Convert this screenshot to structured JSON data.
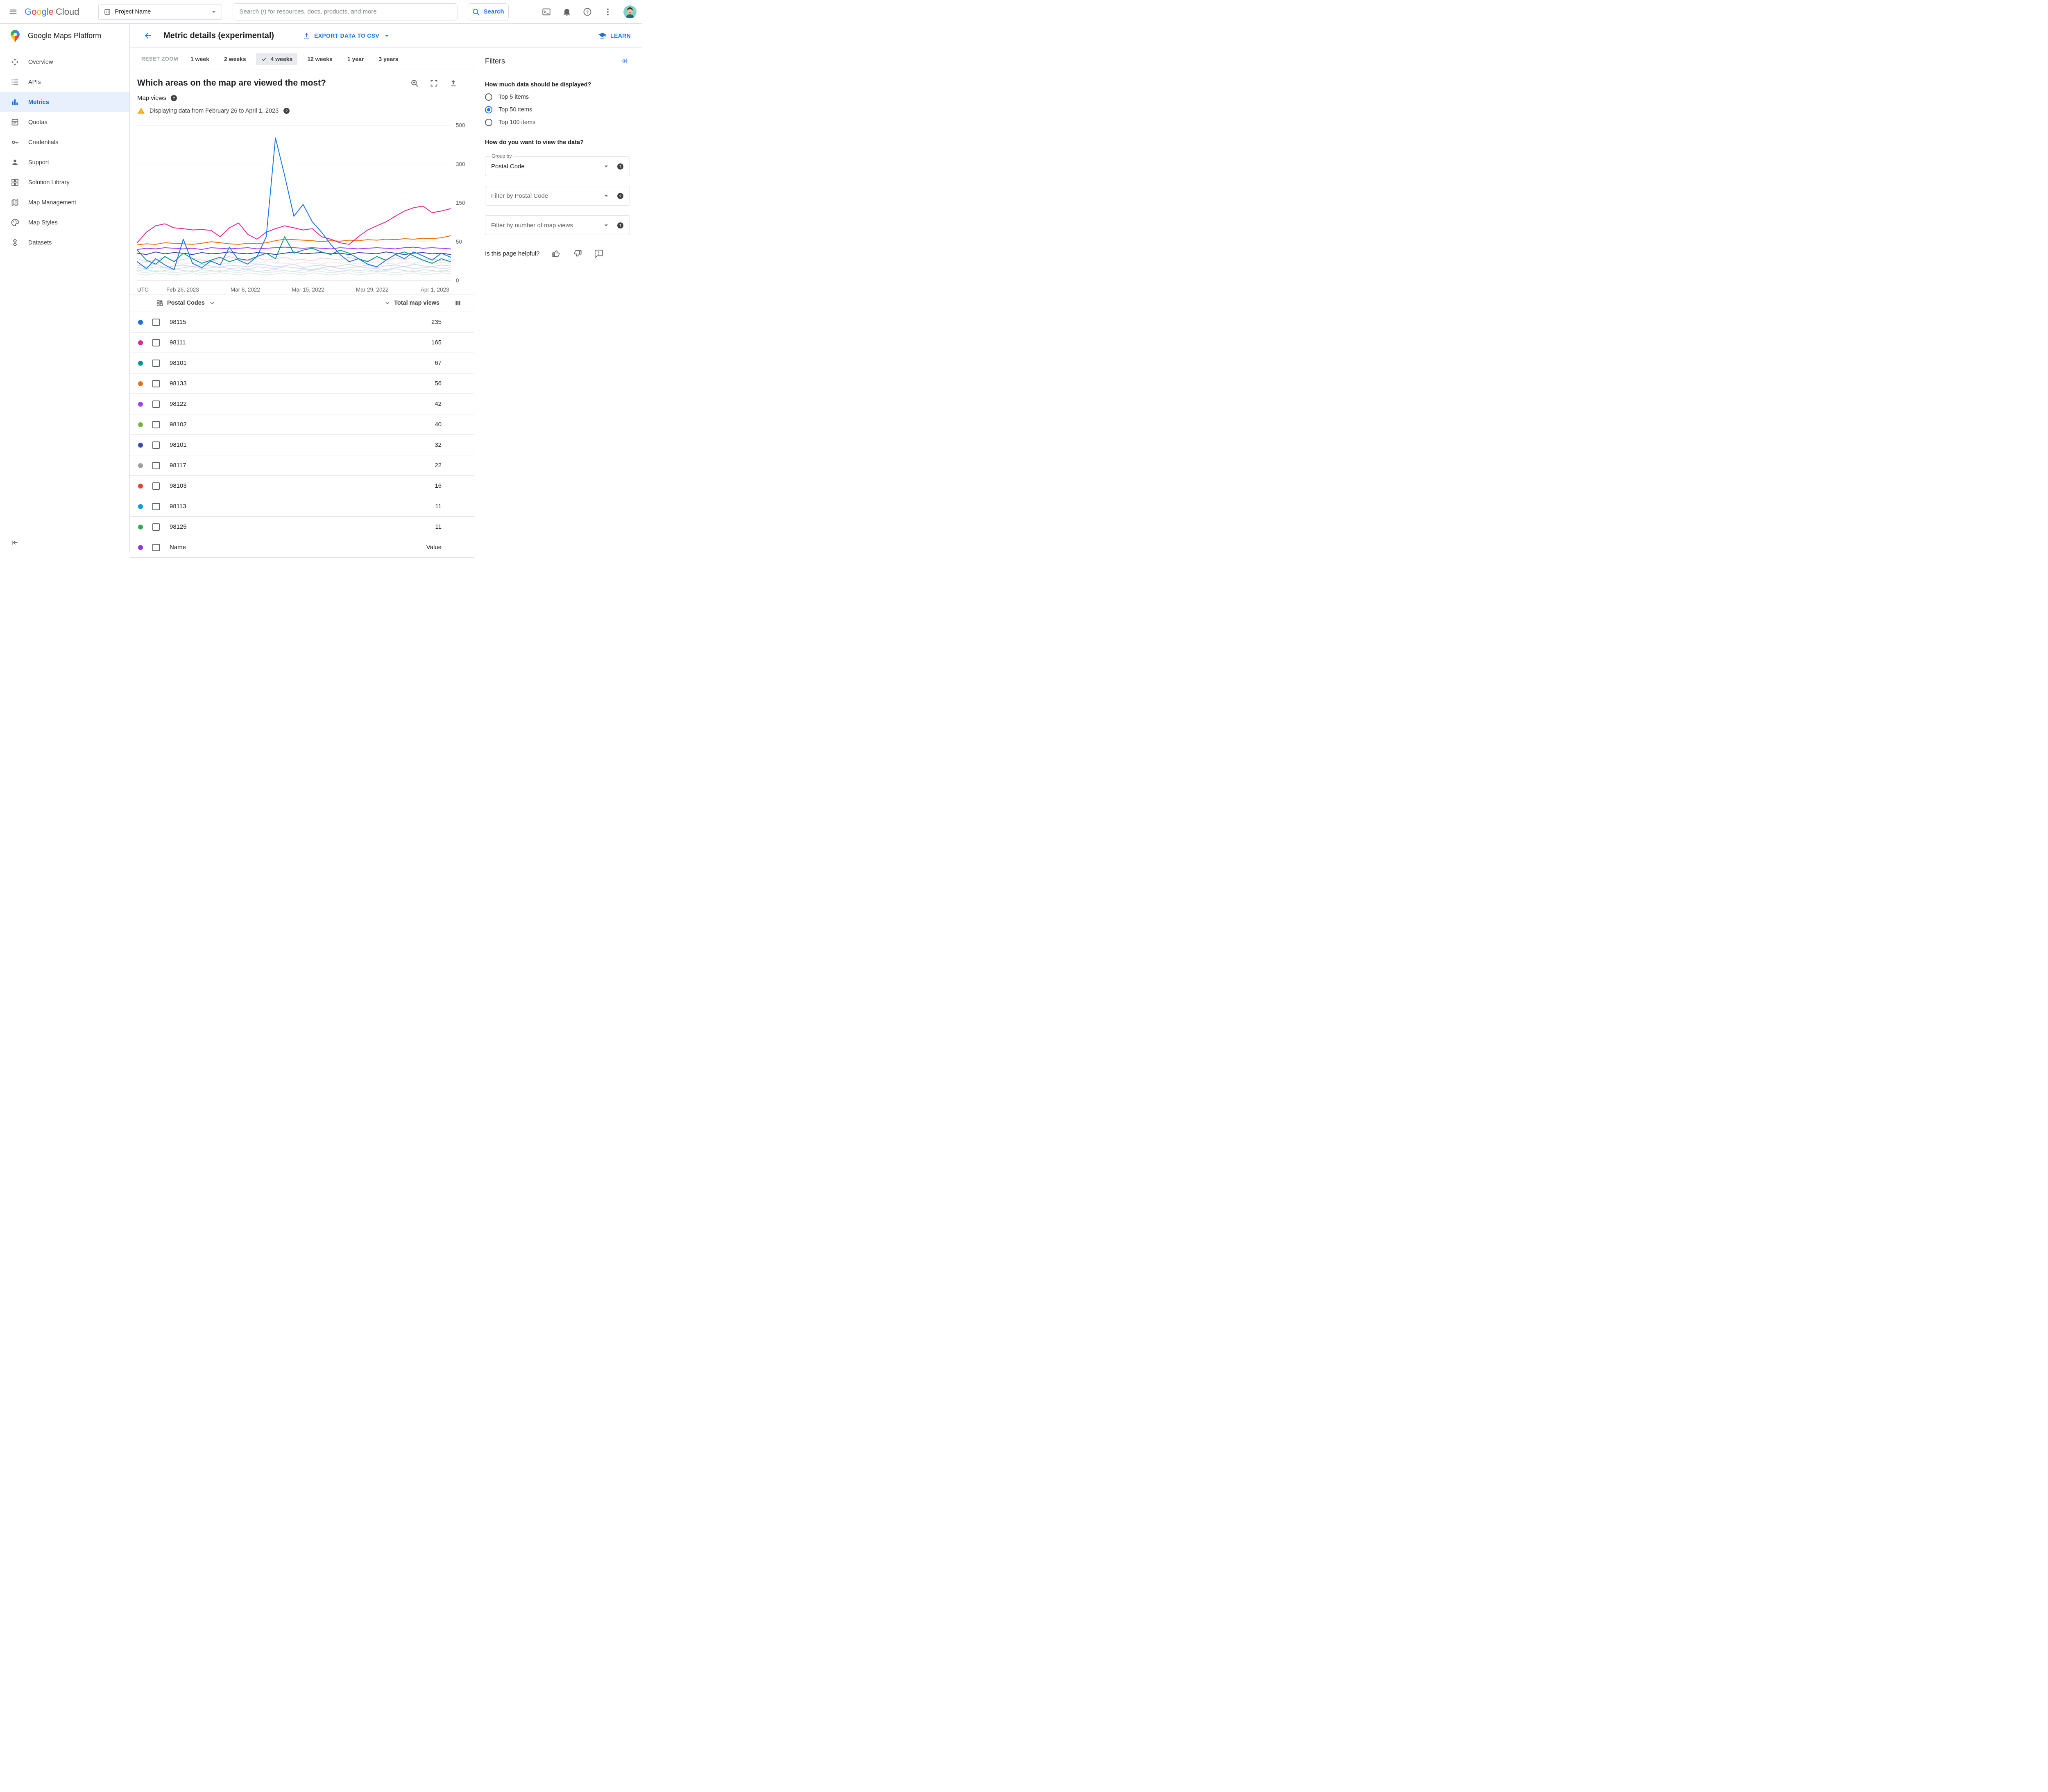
{
  "topbar": {
    "google_letters": [
      {
        "ch": "G",
        "color": "#4285F4"
      },
      {
        "ch": "o",
        "color": "#EA4335"
      },
      {
        "ch": "o",
        "color": "#FBBC04"
      },
      {
        "ch": "g",
        "color": "#4285F4"
      },
      {
        "ch": "l",
        "color": "#34A853"
      },
      {
        "ch": "e",
        "color": "#EA4335"
      }
    ],
    "cloud_text": "Cloud",
    "project_selector_label": "Project Name",
    "search_placeholder": "Search (/) for resources, docs, products, and more",
    "search_button_label": "Search",
    "action_icons": [
      "cloud-shell-icon",
      "notifications-icon",
      "help-icon",
      "more-options-icon",
      "user-avatar"
    ]
  },
  "sidebar": {
    "product_title": "Google Maps Platform",
    "items": [
      {
        "label": "Overview",
        "icon": "overview-icon",
        "active": false
      },
      {
        "label": "APIs",
        "icon": "apis-icon",
        "active": false
      },
      {
        "label": "Metrics",
        "icon": "metrics-icon",
        "active": true
      },
      {
        "label": "Quotas",
        "icon": "quotas-icon",
        "active": false
      },
      {
        "label": "Credentials",
        "icon": "credentials-icon",
        "active": false
      },
      {
        "label": "Support",
        "icon": "support-icon",
        "active": false
      },
      {
        "label": "Solution Library",
        "icon": "solution-library-icon",
        "active": false
      },
      {
        "label": "Map Management",
        "icon": "map-management-icon",
        "active": false
      },
      {
        "label": "Map Styles",
        "icon": "map-styles-icon",
        "active": false
      },
      {
        "label": "Datasets",
        "icon": "datasets-icon",
        "active": false
      }
    ]
  },
  "page_header": {
    "title": "Metric details (experimental)",
    "export_button": "EXPORT DATA TO CSV",
    "learn_button": "LEARN"
  },
  "zoom_bar": {
    "reset_label": "RESET ZOOM",
    "ranges": [
      {
        "label": "1 week",
        "selected": false
      },
      {
        "label": "2 weeks",
        "selected": false
      },
      {
        "label": "4 weeks",
        "selected": true
      },
      {
        "label": "12 weeks",
        "selected": false
      },
      {
        "label": "1 year",
        "selected": false
      },
      {
        "label": "3 years",
        "selected": false
      }
    ]
  },
  "chart_header": {
    "question": "Which areas on the map are viewed the most?",
    "metric_label": "Map views",
    "warning_text": "Displaying data from February 26 to April 1, 2023",
    "timezone_label": "UTC"
  },
  "chart_data": {
    "type": "line",
    "title": "Which areas on the map are viewed the most?",
    "ylabel": "Map views",
    "y_ticks": [
      0,
      50,
      150,
      300,
      500
    ],
    "y_scale_note": "tick marks are evenly spaced on screen (non-linear value scale)",
    "x_tick_labels": [
      "Feb 26, 2023",
      "Mar 8, 2022",
      "Mar 15, 2022",
      "Mar 29, 2022",
      "Apr 1, 2023"
    ],
    "x_range_note": "daily values from Feb 26 to Apr 1",
    "grid": true,
    "legend": "table below chart",
    "series": [
      {
        "name": "other-1",
        "color": "#f5b7d3",
        "faded": true,
        "values": [
          22,
          18,
          20,
          24,
          19,
          21,
          23,
          20,
          18,
          22,
          25,
          21,
          19,
          23,
          20,
          22,
          24,
          20,
          21,
          19,
          23,
          22,
          20,
          24,
          21,
          19,
          22,
          20,
          23,
          21,
          24,
          20,
          22,
          19,
          21
        ]
      },
      {
        "name": "other-2",
        "color": "#aecbfa",
        "faded": true,
        "values": [
          14,
          12,
          15,
          11,
          13,
          14,
          12,
          15,
          13,
          11,
          14,
          13,
          12,
          15,
          14,
          12,
          13,
          15,
          11,
          13,
          14,
          12,
          13,
          15,
          12,
          14,
          11,
          13,
          14,
          12,
          15,
          13,
          12,
          14,
          13
        ]
      },
      {
        "name": "other-3",
        "color": "#b2dfdb",
        "faded": true,
        "values": [
          8,
          9,
          7,
          8,
          10,
          8,
          7,
          9,
          8,
          7,
          9,
          8,
          10,
          7,
          8,
          9,
          8,
          7,
          9,
          8,
          10,
          8,
          7,
          9,
          8,
          9,
          7,
          8,
          10,
          8,
          7,
          9,
          8,
          7,
          9
        ]
      },
      {
        "name": "other-4",
        "color": "#fde0c0",
        "faded": true,
        "values": [
          16,
          17,
          15,
          18,
          16,
          15,
          17,
          16,
          18,
          15,
          16,
          17,
          15,
          16,
          18,
          17,
          16,
          15,
          17,
          16,
          15,
          18,
          16,
          17,
          15,
          16,
          18,
          16,
          15,
          17,
          16,
          18,
          15,
          17,
          16
        ]
      },
      {
        "name": "other-5",
        "color": "#d9c2f0",
        "faded": true,
        "values": [
          11,
          10,
          12,
          11,
          9,
          11,
          12,
          10,
          11,
          12,
          10,
          11,
          9,
          12,
          11,
          10,
          12,
          11,
          10,
          9,
          11,
          12,
          10,
          11,
          12,
          11,
          10,
          9,
          11,
          12,
          10,
          11,
          12,
          10,
          11
        ]
      },
      {
        "name": "other-6",
        "color": "#dadce0",
        "faded": true,
        "values": [
          5,
          4,
          6,
          5,
          4,
          5,
          6,
          4,
          5,
          6,
          5,
          4,
          6,
          5,
          4,
          5,
          6,
          5,
          4,
          6,
          5,
          4,
          5,
          6,
          4,
          5,
          6,
          5,
          4,
          5,
          6,
          4,
          5,
          6,
          5
        ]
      },
      {
        "name": "other-7",
        "color": "#ceead6",
        "faded": true,
        "values": [
          7,
          6,
          8,
          7,
          6,
          7,
          8,
          6,
          7,
          8,
          7,
          6,
          8,
          7,
          6,
          7,
          8,
          7,
          6,
          8,
          7,
          6,
          7,
          8,
          6,
          7,
          8,
          7,
          6,
          7,
          8,
          6,
          7,
          8,
          7
        ]
      },
      {
        "name": "98101-indigo",
        "color": "#3949ab",
        "faded": false,
        "values": [
          30,
          28,
          32,
          29,
          31,
          30,
          28,
          31,
          29,
          30,
          32,
          30,
          29,
          31,
          30,
          28,
          30,
          32,
          29,
          30,
          31,
          29,
          30,
          28,
          31,
          30,
          29,
          32,
          30,
          28,
          30,
          31,
          29,
          30,
          28
        ]
      },
      {
        "name": "98122",
        "color": "#a142f4",
        "faded": false,
        "values": [
          36,
          38,
          37,
          39,
          38,
          37,
          38,
          36,
          39,
          38,
          37,
          38,
          39,
          37,
          38,
          39,
          40,
          39,
          38,
          39,
          38,
          37,
          39,
          38,
          37,
          38,
          39,
          38,
          37,
          39,
          40,
          38,
          39,
          38,
          37
        ]
      },
      {
        "name": "98101",
        "color": "#009688",
        "faded": false,
        "values": [
          35,
          20,
          15,
          25,
          18,
          30,
          22,
          16,
          20,
          24,
          18,
          22,
          20,
          25,
          30,
          22,
          60,
          30,
          35,
          38,
          32,
          28,
          35,
          30,
          22,
          18,
          25,
          20,
          28,
          32,
          26,
          20,
          16,
          22,
          18
        ]
      },
      {
        "name": "98133",
        "color": "#e8710a",
        "faded": false,
        "values": [
          44,
          46,
          45,
          48,
          47,
          46,
          45,
          47,
          50,
          48,
          46,
          45,
          47,
          46,
          48,
          52,
          55,
          54,
          53,
          52,
          50,
          52,
          51,
          53,
          52,
          54,
          53,
          55,
          54,
          56,
          55,
          57,
          56,
          58,
          62
        ]
      },
      {
        "name": "98111",
        "color": "#e52592",
        "faded": false,
        "values": [
          48,
          70,
          85,
          90,
          80,
          78,
          75,
          76,
          74,
          60,
          80,
          92,
          65,
          55,
          70,
          78,
          85,
          80,
          75,
          78,
          60,
          55,
          48,
          45,
          60,
          75,
          85,
          95,
          110,
          125,
          135,
          140,
          120,
          125,
          132
        ]
      },
      {
        "name": "98115",
        "color": "#1a73e8",
        "faded": false,
        "values": [
          18,
          10,
          22,
          14,
          9,
          55,
          16,
          11,
          19,
          14,
          40,
          20,
          15,
          25,
          60,
          430,
          250,
          110,
          145,
          95,
          70,
          45,
          28,
          18,
          22,
          15,
          12,
          20,
          28,
          22,
          32,
          26,
          20,
          30,
          24
        ]
      }
    ]
  },
  "table": {
    "group_header": "Postal Codes",
    "value_header": "Total map views",
    "rows": [
      {
        "color": "#1a73e8",
        "label": "98115",
        "value": "235"
      },
      {
        "color": "#e52592",
        "label": "98111",
        "value": "165"
      },
      {
        "color": "#009688",
        "label": "98101",
        "value": "67"
      },
      {
        "color": "#e8710a",
        "label": "98133",
        "value": "56"
      },
      {
        "color": "#a142f4",
        "label": "98122",
        "value": "42"
      },
      {
        "color": "#7cb342",
        "label": "98102",
        "value": "40"
      },
      {
        "color": "#3949ab",
        "label": "98101",
        "value": "32"
      },
      {
        "color": "#9aa0a6",
        "label": "98117",
        "value": "22"
      },
      {
        "color": "#ea4335",
        "label": "98103",
        "value": "16"
      },
      {
        "color": "#039be5",
        "label": "98113",
        "value": "11"
      },
      {
        "color": "#34a853",
        "label": "98125",
        "value": "11"
      },
      {
        "color": "#9334e6",
        "label": "Name",
        "value": "Value"
      }
    ]
  },
  "filters": {
    "title": "Filters",
    "display_question": "How much data should be displayed?",
    "display_options": [
      {
        "label": "Top 5 items",
        "selected": false
      },
      {
        "label": "Top 50 items",
        "selected": true
      },
      {
        "label": "Top 100 items",
        "selected": false
      }
    ],
    "view_question": "How do you want to view the data?",
    "group_by_label": "Group by",
    "group_by_value": "Postal Code",
    "postal_filter_placeholder": "Filter by Postal Code",
    "views_filter_placeholder": "Filter by number of map views",
    "helpful_question": "Is this page helpful?",
    "helpful_icons": [
      "thumb-up-icon",
      "thumb-down-icon",
      "feedback-icon"
    ]
  }
}
